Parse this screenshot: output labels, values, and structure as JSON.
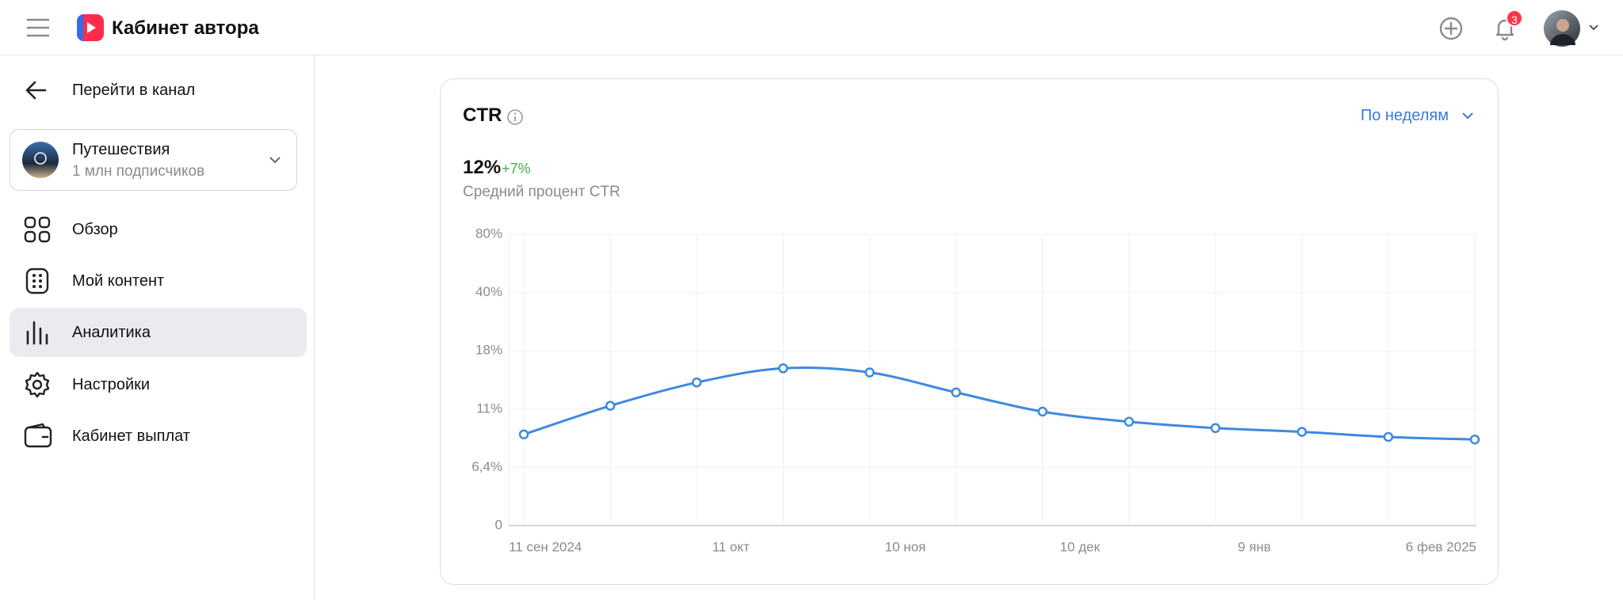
{
  "header": {
    "title": "Кабинет автора",
    "notifications": 3
  },
  "sidebar": {
    "back": "Перейти в канал",
    "channel": {
      "name": "Путешествия",
      "subscribers": "1 млн подписчиков"
    },
    "nav": [
      "Обзор",
      "Мой контент",
      "Аналитика",
      "Настройки",
      "Кабинет выплат"
    ]
  },
  "card": {
    "title": "CTR",
    "period": "По неделям",
    "metric": "12%",
    "change": "+7%",
    "caption": "Средний процент CTR"
  },
  "chart_data": {
    "type": "line",
    "color": "#3d8ae0",
    "values": [
      9.0,
      11.4,
      14.2,
      15.9,
      15.4,
      13.0,
      10.8,
      10.0,
      9.5,
      9.2,
      8.8,
      8.6
    ],
    "x_labels": [
      "11 сен 2024",
      "11 окт",
      "10 ноя",
      "10 дек",
      "9 янв",
      "6 фев 2025"
    ],
    "ylim": [
      0,
      80
    ],
    "yticks": [
      0,
      {
        "value": 6.4,
        "label": "6,4%"
      },
      {
        "value": 11,
        "label": "11%"
      },
      {
        "value": 18,
        "label": "18%"
      },
      {
        "value": 40,
        "label": "40%"
      },
      {
        "value": 80,
        "label": "80%"
      }
    ],
    "grid": true
  }
}
